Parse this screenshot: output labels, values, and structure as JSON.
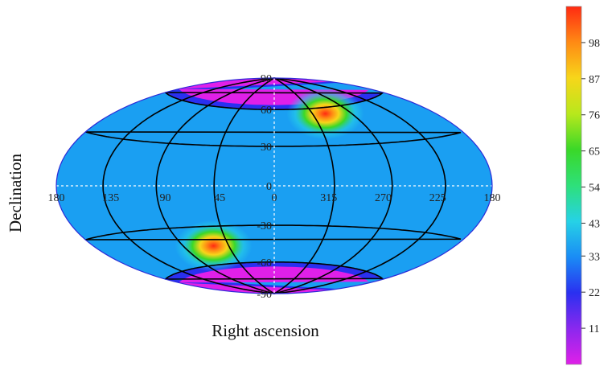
{
  "chart_data": {
    "type": "heatmap",
    "projection": "hammer-aitoff",
    "xlabel": "Right ascension",
    "ylabel": "Declination",
    "ra_ticks": [
      "180",
      "135",
      "90",
      "45",
      "0",
      "315",
      "270",
      "225",
      "180"
    ],
    "dec_ticks": [
      "90",
      "60",
      "30",
      "0",
      "-30",
      "-60",
      "-90"
    ],
    "colorbar": {
      "ticks": [
        "98",
        "87",
        "76",
        "65",
        "54",
        "43",
        "33",
        "22",
        "11"
      ],
      "range": [
        0,
        109
      ],
      "colors": [
        "#e020e8",
        "#8a28ee",
        "#2a30f0",
        "#1a8cf5",
        "#26d2e6",
        "#2ee07a",
        "#3ad828",
        "#b8e81c",
        "#f7d61a",
        "#ff8a14",
        "#ff2a12"
      ]
    },
    "hotspots": [
      {
        "ra": 300,
        "dec": 55,
        "value": 100
      },
      {
        "ra": 60,
        "dec": -45,
        "value": 100
      }
    ],
    "background_level": 38,
    "polar_level": 2,
    "grid": true
  }
}
